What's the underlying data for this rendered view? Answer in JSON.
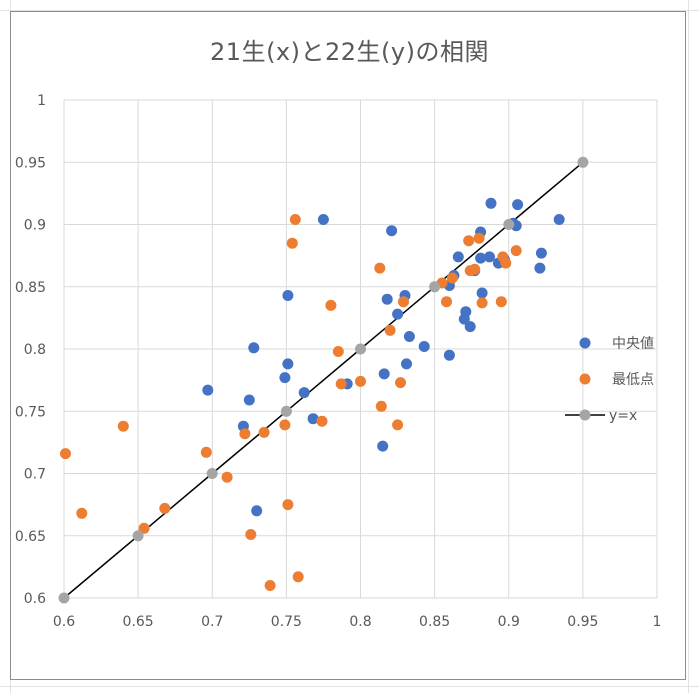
{
  "chart_data": {
    "type": "scatter",
    "title": "21生(x)と22生(y)の相関",
    "xlim": [
      0.6,
      1.0
    ],
    "ylim": [
      0.6,
      1.0
    ],
    "xticks": [
      "0.6",
      "0.65",
      "0.7",
      "0.75",
      "0.8",
      "0.85",
      "0.9",
      "0.95",
      "1"
    ],
    "yticks": [
      "0.6",
      "0.65",
      "0.7",
      "0.75",
      "0.8",
      "0.85",
      "0.9",
      "0.95",
      "1"
    ],
    "grid": true,
    "legend_position": "right",
    "series": [
      {
        "name": "中央値",
        "color": "#4472C4",
        "points": [
          [
            0.697,
            0.767
          ],
          [
            0.721,
            0.738
          ],
          [
            0.725,
            0.759
          ],
          [
            0.728,
            0.801
          ],
          [
            0.73,
            0.67
          ],
          [
            0.749,
            0.777
          ],
          [
            0.751,
            0.788
          ],
          [
            0.751,
            0.843
          ],
          [
            0.762,
            0.765
          ],
          [
            0.768,
            0.744
          ],
          [
            0.775,
            0.904
          ],
          [
            0.791,
            0.772
          ],
          [
            0.815,
            0.722
          ],
          [
            0.816,
            0.78
          ],
          [
            0.818,
            0.84
          ],
          [
            0.821,
            0.895
          ],
          [
            0.825,
            0.828
          ],
          [
            0.83,
            0.843
          ],
          [
            0.831,
            0.788
          ],
          [
            0.833,
            0.81
          ],
          [
            0.843,
            0.802
          ],
          [
            0.86,
            0.795
          ],
          [
            0.86,
            0.851
          ],
          [
            0.863,
            0.859
          ],
          [
            0.866,
            0.874
          ],
          [
            0.87,
            0.824
          ],
          [
            0.871,
            0.83
          ],
          [
            0.874,
            0.818
          ],
          [
            0.877,
            0.863
          ],
          [
            0.881,
            0.873
          ],
          [
            0.881,
            0.894
          ],
          [
            0.882,
            0.845
          ],
          [
            0.887,
            0.874
          ],
          [
            0.888,
            0.917
          ],
          [
            0.893,
            0.869
          ],
          [
            0.897,
            0.872
          ],
          [
            0.903,
            0.901
          ],
          [
            0.905,
            0.899
          ],
          [
            0.906,
            0.916
          ],
          [
            0.921,
            0.865
          ],
          [
            0.922,
            0.877
          ],
          [
            0.934,
            0.904
          ]
        ]
      },
      {
        "name": "最低点",
        "color": "#ED7D31",
        "points": [
          [
            0.601,
            0.716
          ],
          [
            0.612,
            0.668
          ],
          [
            0.64,
            0.738
          ],
          [
            0.654,
            0.656
          ],
          [
            0.668,
            0.672
          ],
          [
            0.696,
            0.717
          ],
          [
            0.71,
            0.697
          ],
          [
            0.722,
            0.732
          ],
          [
            0.726,
            0.651
          ],
          [
            0.735,
            0.733
          ],
          [
            0.739,
            0.61
          ],
          [
            0.749,
            0.739
          ],
          [
            0.751,
            0.675
          ],
          [
            0.754,
            0.885
          ],
          [
            0.756,
            0.904
          ],
          [
            0.758,
            0.617
          ],
          [
            0.774,
            0.742
          ],
          [
            0.78,
            0.835
          ],
          [
            0.785,
            0.798
          ],
          [
            0.787,
            0.772
          ],
          [
            0.8,
            0.774
          ],
          [
            0.813,
            0.865
          ],
          [
            0.814,
            0.754
          ],
          [
            0.82,
            0.815
          ],
          [
            0.825,
            0.739
          ],
          [
            0.827,
            0.773
          ],
          [
            0.829,
            0.838
          ],
          [
            0.855,
            0.853
          ],
          [
            0.858,
            0.838
          ],
          [
            0.862,
            0.857
          ],
          [
            0.873,
            0.887
          ],
          [
            0.874,
            0.863
          ],
          [
            0.877,
            0.864
          ],
          [
            0.88,
            0.889
          ],
          [
            0.882,
            0.837
          ],
          [
            0.895,
            0.838
          ],
          [
            0.896,
            0.874
          ],
          [
            0.898,
            0.869
          ],
          [
            0.905,
            0.879
          ]
        ]
      },
      {
        "name": "y=x",
        "color": "#000000",
        "marker_color": "#A5A5A5",
        "line": true,
        "points": [
          [
            0.6,
            0.6
          ],
          [
            0.65,
            0.65
          ],
          [
            0.7,
            0.7
          ],
          [
            0.75,
            0.75
          ],
          [
            0.8,
            0.8
          ],
          [
            0.85,
            0.85
          ],
          [
            0.9,
            0.9
          ],
          [
            0.95,
            0.95
          ]
        ]
      }
    ]
  }
}
